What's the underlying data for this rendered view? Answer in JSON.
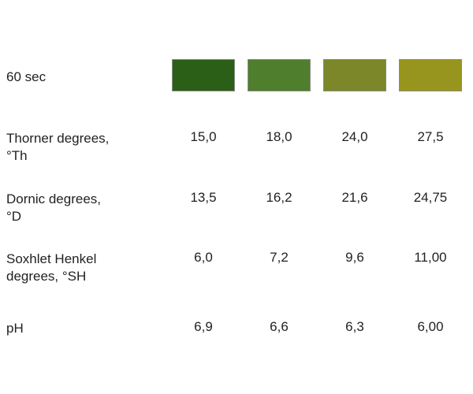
{
  "time_label": "60 sec",
  "swatches": [
    {
      "color": "#2b5f18"
    },
    {
      "color": "#4f7f2d"
    },
    {
      "color": "#7b8728"
    },
    {
      "color": "#98951e"
    }
  ],
  "rows": [
    {
      "label": "Thorner degrees,\n°Th",
      "values": [
        "15,0",
        "18,0",
        "24,0",
        "27,5"
      ]
    },
    {
      "label": "Dornic degrees,\n°D",
      "values": [
        "13,5",
        "16,2",
        "21,6",
        "24,75"
      ]
    },
    {
      "label": "Soxhlet Henkel\ndegrees, °SH",
      "values": [
        "6,0",
        "7,2",
        "9,6",
        "11,00"
      ]
    },
    {
      "label": "pH",
      "values": [
        "6,9",
        "6,6",
        "6,3",
        "6,00"
      ]
    }
  ]
}
